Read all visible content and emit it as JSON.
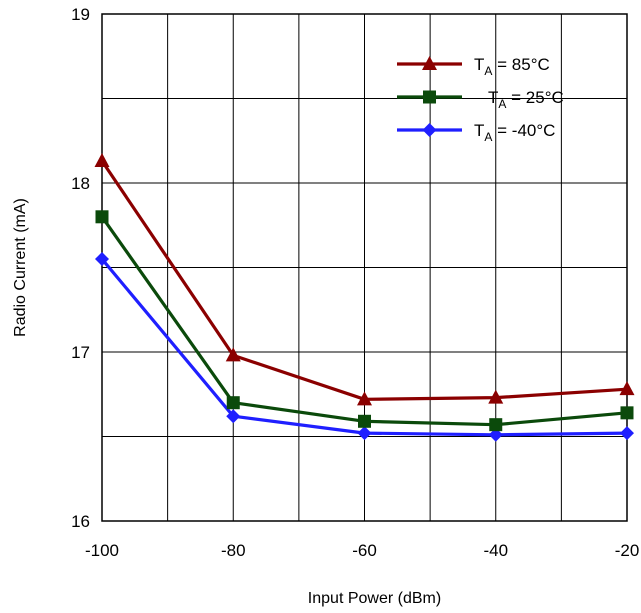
{
  "chart_data": {
    "type": "line",
    "title": "",
    "xlabel": "Input Power (dBm)",
    "ylabel": "Radio Current (mA)",
    "x": [
      -100,
      -80,
      -60,
      -40,
      -20
    ],
    "xlim": [
      -100,
      -20
    ],
    "ylim": [
      16,
      19
    ],
    "xticks": [
      "-100",
      "-80",
      "-60",
      "-40",
      "-20"
    ],
    "yticks": [
      "16",
      "17",
      "18",
      "19"
    ],
    "grid": true,
    "legend_position": "top-right",
    "series": [
      {
        "name_main": "T",
        "name_sub": "A",
        "name_rest": " = 85°C",
        "marker": "triangle",
        "color": "#8B0000",
        "values": [
          18.13,
          16.98,
          16.72,
          16.73,
          16.78
        ]
      },
      {
        "name_main": "T",
        "name_sub": "A",
        "name_rest": " = 25°C",
        "marker": "square",
        "color": "#0B4A0B",
        "values": [
          17.8,
          16.7,
          16.59,
          16.57,
          16.64
        ]
      },
      {
        "name_main": "T",
        "name_sub": "A",
        "name_rest": " = -40°C",
        "marker": "diamond",
        "color": "#1F1FFF",
        "values": [
          17.55,
          16.62,
          16.52,
          16.51,
          16.52
        ]
      }
    ]
  }
}
